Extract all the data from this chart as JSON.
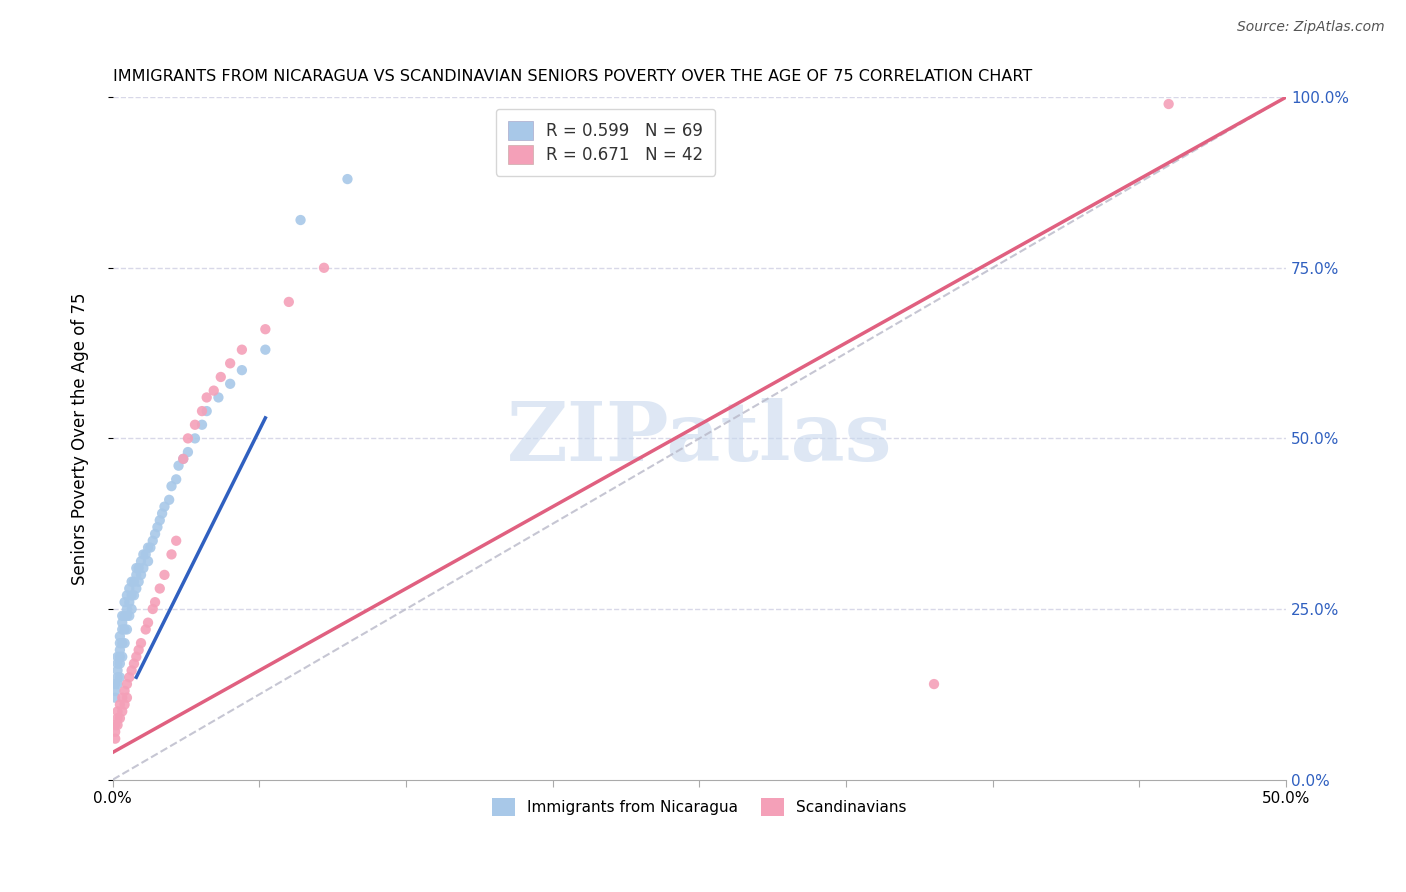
{
  "title": "IMMIGRANTS FROM NICARAGUA VS SCANDINAVIAN SENIORS POVERTY OVER THE AGE OF 75 CORRELATION CHART",
  "source": "Source: ZipAtlas.com",
  "ylabel": "Seniors Poverty Over the Age of 75",
  "xmin": 0.0,
  "xmax": 0.5,
  "ymin": 0.0,
  "ymax": 1.0,
  "blue_R": 0.599,
  "blue_N": 69,
  "pink_R": 0.671,
  "pink_N": 42,
  "blue_color": "#a8c8e8",
  "pink_color": "#f4a0b8",
  "blue_line_color": "#3060c0",
  "pink_line_color": "#e06080",
  "right_axis_color": "#3060c0",
  "grid_color": "#d8d8e8",
  "watermark_color": "#c8d8ee",
  "watermark": "ZIPatlas",
  "legend_label_blue": "Immigrants from Nicaragua",
  "legend_label_pink": "Scandinavians",
  "right_yticks": [
    0.0,
    0.25,
    0.5,
    0.75,
    1.0
  ],
  "right_yticklabels": [
    "0.0%",
    "25.0%",
    "50.0%",
    "75.0%",
    "100.0%"
  ],
  "blue_trend_x": [
    0.01,
    0.065
  ],
  "blue_trend_y": [
    0.15,
    0.53
  ],
  "pink_trend_x": [
    0.0,
    0.5
  ],
  "pink_trend_y": [
    0.04,
    1.0
  ],
  "blue_scatter_x": [
    0.001,
    0.001,
    0.001,
    0.002,
    0.002,
    0.002,
    0.002,
    0.002,
    0.003,
    0.003,
    0.003,
    0.003,
    0.003,
    0.003,
    0.004,
    0.004,
    0.004,
    0.004,
    0.004,
    0.005,
    0.005,
    0.005,
    0.005,
    0.006,
    0.006,
    0.006,
    0.006,
    0.007,
    0.007,
    0.007,
    0.008,
    0.008,
    0.008,
    0.009,
    0.009,
    0.01,
    0.01,
    0.01,
    0.011,
    0.011,
    0.012,
    0.012,
    0.013,
    0.013,
    0.014,
    0.015,
    0.015,
    0.016,
    0.017,
    0.018,
    0.019,
    0.02,
    0.021,
    0.022,
    0.024,
    0.025,
    0.027,
    0.028,
    0.03,
    0.032,
    0.035,
    0.038,
    0.04,
    0.045,
    0.05,
    0.055,
    0.065,
    0.08,
    0.1
  ],
  "blue_scatter_y": [
    0.12,
    0.13,
    0.14,
    0.14,
    0.15,
    0.16,
    0.17,
    0.18,
    0.15,
    0.17,
    0.18,
    0.19,
    0.2,
    0.21,
    0.18,
    0.2,
    0.22,
    0.23,
    0.24,
    0.2,
    0.22,
    0.24,
    0.26,
    0.22,
    0.24,
    0.25,
    0.27,
    0.24,
    0.26,
    0.28,
    0.25,
    0.27,
    0.29,
    0.27,
    0.29,
    0.28,
    0.3,
    0.31,
    0.29,
    0.31,
    0.3,
    0.32,
    0.31,
    0.33,
    0.33,
    0.32,
    0.34,
    0.34,
    0.35,
    0.36,
    0.37,
    0.38,
    0.39,
    0.4,
    0.41,
    0.43,
    0.44,
    0.46,
    0.47,
    0.48,
    0.5,
    0.52,
    0.54,
    0.56,
    0.58,
    0.6,
    0.63,
    0.82,
    0.88
  ],
  "pink_scatter_x": [
    0.001,
    0.001,
    0.001,
    0.002,
    0.002,
    0.002,
    0.003,
    0.003,
    0.004,
    0.004,
    0.005,
    0.005,
    0.006,
    0.006,
    0.007,
    0.008,
    0.009,
    0.01,
    0.011,
    0.012,
    0.014,
    0.015,
    0.017,
    0.018,
    0.02,
    0.022,
    0.025,
    0.027,
    0.03,
    0.032,
    0.035,
    0.038,
    0.04,
    0.043,
    0.046,
    0.05,
    0.055,
    0.065,
    0.075,
    0.09,
    0.35,
    0.45
  ],
  "pink_scatter_y": [
    0.06,
    0.07,
    0.08,
    0.08,
    0.09,
    0.1,
    0.09,
    0.11,
    0.1,
    0.12,
    0.11,
    0.13,
    0.12,
    0.14,
    0.15,
    0.16,
    0.17,
    0.18,
    0.19,
    0.2,
    0.22,
    0.23,
    0.25,
    0.26,
    0.28,
    0.3,
    0.33,
    0.35,
    0.47,
    0.5,
    0.52,
    0.54,
    0.56,
    0.57,
    0.59,
    0.61,
    0.63,
    0.66,
    0.7,
    0.75,
    0.14,
    0.99
  ]
}
